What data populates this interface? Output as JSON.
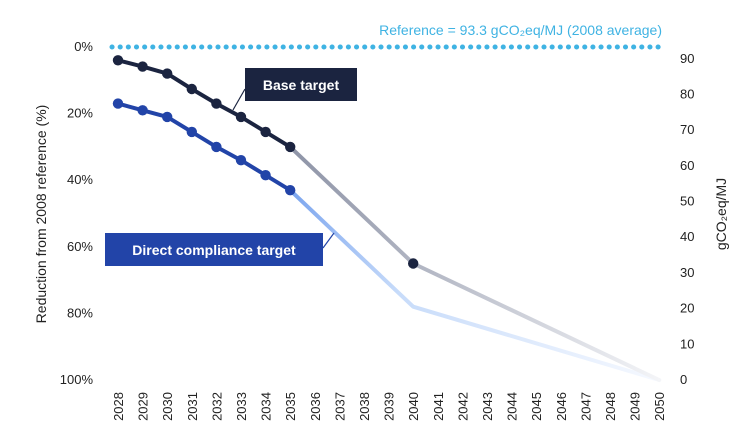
{
  "chart_data": {
    "type": "line",
    "reference_label": "Reference = 93.3 gCO₂eq/MJ (2008 average)",
    "reference_value": 0,
    "ylabel_left": "Reduction from 2008 reference (%)",
    "ylabel_right": "gCO₂eq/MJ",
    "ylim_left": [
      0,
      100
    ],
    "ylim_right": [
      0,
      93.3
    ],
    "yticks_left": [
      0,
      20,
      40,
      60,
      80,
      100
    ],
    "ytick_labels_left": [
      "0%",
      "20%",
      "40%",
      "60%",
      "80%",
      "100%"
    ],
    "yticks_right": [
      0,
      10,
      20,
      30,
      40,
      50,
      60,
      70,
      80,
      90
    ],
    "ytick_labels_right": [
      "0",
      "10",
      "20",
      "30",
      "40",
      "50",
      "60",
      "70",
      "80",
      "90"
    ],
    "x": [
      "2028",
      "2029",
      "2030",
      "2031",
      "2032",
      "2033",
      "2034",
      "2035",
      "2036",
      "2037",
      "2038",
      "2039",
      "2040",
      "2041",
      "2042",
      "2043",
      "2044",
      "2045",
      "2046",
      "2047",
      "2048",
      "2049",
      "2050"
    ],
    "grid": false,
    "colors": {
      "base": "#1b2440",
      "direct": "#2244a8",
      "reference": "#3fb3e3",
      "base_fade_start": "#8d93a6",
      "direct_fade_start": "#7aa4ee",
      "direct_fade_mid": "#c8dcfa"
    },
    "series": [
      {
        "name": "Base target",
        "x": [
          "2028",
          "2029",
          "2030",
          "2031",
          "2032",
          "2033",
          "2034",
          "2035",
          "2040",
          "2050"
        ],
        "values": [
          4,
          5.9,
          8,
          12.6,
          17,
          21,
          25.5,
          30,
          65,
          100
        ],
        "markers": [
          "2028",
          "2029",
          "2030",
          "2031",
          "2032",
          "2033",
          "2034",
          "2035",
          "2040"
        ]
      },
      {
        "name": "Direct compliance target",
        "x": [
          "2028",
          "2029",
          "2030",
          "2031",
          "2032",
          "2033",
          "2034",
          "2035",
          "2040",
          "2050"
        ],
        "values": [
          17,
          19,
          21,
          25.5,
          30,
          34,
          38.5,
          43,
          78,
          100
        ],
        "markers": [
          "2028",
          "2029",
          "2030",
          "2031",
          "2032",
          "2033",
          "2034",
          "2035"
        ]
      }
    ]
  }
}
